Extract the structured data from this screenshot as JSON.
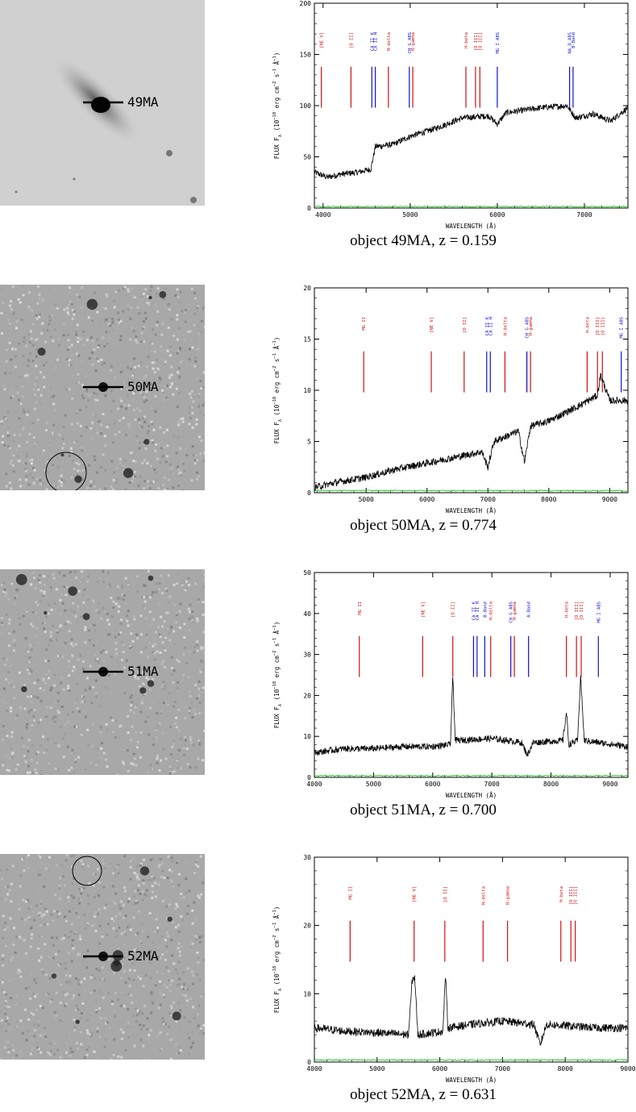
{
  "common": {
    "xlabel": "WAVELENGTH (Å)",
    "ylabel": "FLUX F",
    "ylabel_sub": "λ",
    "ylabel_units": "(10",
    "ylabel_exp": "−18",
    "ylabel_units2": " erg cm",
    "ylabel_exp2": "−2",
    "ylabel_units3": " s",
    "ylabel_exp3": "−1",
    "ylabel_units4": " Å",
    "ylabel_exp4": "−1",
    "ylabel_units5": ")",
    "colors": {
      "spectrum": "#000000",
      "error": "#00c000",
      "red_line": "#d01010",
      "blue_line": "#1010d0"
    }
  },
  "panels": [
    {
      "object_label": "49MA",
      "caption": "object 49MA, z = 0.159",
      "image_style": "smooth",
      "circle": false,
      "chart_data": {
        "type": "line",
        "xlim": [
          3900,
          7500
        ],
        "ylim": [
          0,
          200
        ],
        "xticks": [
          4000,
          5000,
          6000,
          7000
        ],
        "yticks": [
          0,
          50,
          100,
          150,
          200
        ],
        "spectrum_anchors": [
          [
            3900,
            35
          ],
          [
            4050,
            30
          ],
          [
            4200,
            33
          ],
          [
            4400,
            35
          ],
          [
            4550,
            38
          ],
          [
            4600,
            60
          ],
          [
            4800,
            62
          ],
          [
            5000,
            70
          ],
          [
            5300,
            78
          ],
          [
            5600,
            88
          ],
          [
            5900,
            90
          ],
          [
            6000,
            82
          ],
          [
            6100,
            93
          ],
          [
            6500,
            98
          ],
          [
            6800,
            100
          ],
          [
            6900,
            88
          ],
          [
            7100,
            92
          ],
          [
            7300,
            85
          ],
          [
            7500,
            98
          ]
        ],
        "noise": 3,
        "error_level": 1.5,
        "lines": [
          {
            "label": "[NE V]",
            "x": 3980,
            "color": "red"
          },
          {
            "label": "[O II]",
            "x": 4320,
            "color": "red"
          },
          {
            "label": "CA II K",
            "x": 4560,
            "color": "blue"
          },
          {
            "label": "CA II H",
            "x": 4600,
            "color": "blue"
          },
          {
            "label": "H-delta",
            "x": 4750,
            "color": "red"
          },
          {
            "label": "CH G ABS",
            "x": 4990,
            "color": "blue"
          },
          {
            "label": "H-gamma",
            "x": 5030,
            "color": "red"
          },
          {
            "label": "H-beta",
            "x": 5640,
            "color": "red"
          },
          {
            "label": "[O III]",
            "x": 5750,
            "color": "red"
          },
          {
            "label": "[O III]",
            "x": 5800,
            "color": "red"
          },
          {
            "label": "MG I ABS",
            "x": 6000,
            "color": "blue"
          },
          {
            "label": "NA D ABS",
            "x": 6830,
            "color": "blue"
          },
          {
            "label": "B-Band",
            "x": 6870,
            "color": "blue"
          }
        ]
      }
    },
    {
      "object_label": "50MA",
      "caption": "object 50MA, z = 0.774",
      "image_style": "noisy",
      "circle": true,
      "chart_data": {
        "type": "line",
        "xlim": [
          4150,
          9300
        ],
        "ylim": [
          0,
          20
        ],
        "xticks": [
          5000,
          6000,
          7000,
          8000,
          9000
        ],
        "yticks": [
          0,
          5,
          10,
          15,
          20
        ],
        "spectrum_anchors": [
          [
            4150,
            0.5
          ],
          [
            4500,
            1.0
          ],
          [
            5000,
            1.5
          ],
          [
            5500,
            2.3
          ],
          [
            6000,
            2.9
          ],
          [
            6500,
            3.5
          ],
          [
            6900,
            4.0
          ],
          [
            7000,
            2.5
          ],
          [
            7100,
            5.0
          ],
          [
            7500,
            6.0
          ],
          [
            7600,
            3.0
          ],
          [
            7700,
            6.5
          ],
          [
            8000,
            7.0
          ],
          [
            8500,
            8.5
          ],
          [
            8800,
            9.5
          ],
          [
            8850,
            11.5
          ],
          [
            9000,
            9.0
          ],
          [
            9300,
            9.0
          ]
        ],
        "noise": 0.35,
        "error_level": 0.2,
        "lines": [
          {
            "label": "MG II",
            "x": 4960,
            "color": "red"
          },
          {
            "label": "[NE V]",
            "x": 6070,
            "color": "red"
          },
          {
            "label": "[O II]",
            "x": 6610,
            "color": "red"
          },
          {
            "label": "CA II K",
            "x": 6980,
            "color": "blue"
          },
          {
            "label": "CA II H",
            "x": 7040,
            "color": "blue"
          },
          {
            "label": "H-delta",
            "x": 7280,
            "color": "red"
          },
          {
            "label": "CH G ABS",
            "x": 7640,
            "color": "blue"
          },
          {
            "label": "H-gamma",
            "x": 7700,
            "color": "red"
          },
          {
            "label": "H-beta",
            "x": 8630,
            "color": "red"
          },
          {
            "label": "[O III]",
            "x": 8800,
            "color": "red"
          },
          {
            "label": "[O III]",
            "x": 8880,
            "color": "red"
          },
          {
            "label": "MG I ABS",
            "x": 9190,
            "color": "blue"
          }
        ]
      }
    },
    {
      "object_label": "51MA",
      "caption": "object 51MA, z = 0.700",
      "image_style": "noisy",
      "circle": false,
      "chart_data": {
        "type": "line",
        "xlim": [
          4000,
          9300
        ],
        "ylim": [
          0,
          50
        ],
        "xticks": [
          4000,
          5000,
          6000,
          7000,
          8000,
          9000
        ],
        "yticks": [
          0,
          10,
          20,
          30,
          40,
          50
        ],
        "spectrum_anchors": [
          [
            4000,
            6.0
          ],
          [
            4500,
            7.0
          ],
          [
            5000,
            7.0
          ],
          [
            5500,
            7.5
          ],
          [
            6000,
            7.5
          ],
          [
            6300,
            8.0
          ],
          [
            6340,
            25.0
          ],
          [
            6380,
            9.0
          ],
          [
            7000,
            9.5
          ],
          [
            7500,
            8.5
          ],
          [
            7600,
            5.5
          ],
          [
            7700,
            8.5
          ],
          [
            8200,
            9.0
          ],
          [
            8260,
            16.0
          ],
          [
            8300,
            8.0
          ],
          [
            8450,
            9.0
          ],
          [
            8500,
            25.0
          ],
          [
            8560,
            9.0
          ],
          [
            9300,
            7.5
          ]
        ],
        "noise": 0.8,
        "error_level": 0.4,
        "lines": [
          {
            "label": "MG II",
            "x": 4760,
            "color": "red"
          },
          {
            "label": "[NE V]",
            "x": 5830,
            "color": "red"
          },
          {
            "label": "[O II]",
            "x": 6340,
            "color": "red"
          },
          {
            "label": "CA II K",
            "x": 6690,
            "color": "blue"
          },
          {
            "label": "CA II H",
            "x": 6750,
            "color": "blue"
          },
          {
            "label": "B-Band",
            "x": 6880,
            "color": "blue"
          },
          {
            "label": "H-delta",
            "x": 6980,
            "color": "red"
          },
          {
            "label": "CH G ABS",
            "x": 7320,
            "color": "blue"
          },
          {
            "label": "H-gamma",
            "x": 7380,
            "color": "red"
          },
          {
            "label": "A-Band",
            "x": 7620,
            "color": "blue"
          },
          {
            "label": "H-beta",
            "x": 8260,
            "color": "red"
          },
          {
            "label": "[O III]",
            "x": 8430,
            "color": "red"
          },
          {
            "label": "[O III]",
            "x": 8510,
            "color": "red"
          },
          {
            "label": "MG I ABS",
            "x": 8800,
            "color": "blue"
          }
        ]
      }
    },
    {
      "object_label": "52MA",
      "caption": "object 52MA, z = 0.631",
      "image_style": "noisy",
      "circle": true,
      "chart_data": {
        "type": "line",
        "xlim": [
          4000,
          9000
        ],
        "ylim": [
          0,
          30
        ],
        "xticks": [
          4000,
          5000,
          6000,
          7000,
          8000,
          9000
        ],
        "yticks": [
          0,
          10,
          20,
          30
        ],
        "spectrum_anchors": [
          [
            4000,
            5.0
          ],
          [
            4500,
            4.5
          ],
          [
            5000,
            4.3
          ],
          [
            5500,
            4.0
          ],
          [
            5560,
            12.0
          ],
          [
            5600,
            12.5
          ],
          [
            5650,
            4.0
          ],
          [
            6050,
            4.5
          ],
          [
            6090,
            13.0
          ],
          [
            6130,
            5.0
          ],
          [
            6500,
            5.5
          ],
          [
            7000,
            6.0
          ],
          [
            7500,
            5.5
          ],
          [
            7600,
            2.5
          ],
          [
            7700,
            5.5
          ],
          [
            8500,
            5.0
          ],
          [
            9000,
            5.0
          ]
        ],
        "noise": 0.6,
        "error_level": 0.3,
        "lines": [
          {
            "label": "MG II",
            "x": 4570,
            "color": "red"
          },
          {
            "label": "[NE V]",
            "x": 5590,
            "color": "red"
          },
          {
            "label": "[O II]",
            "x": 6080,
            "color": "red"
          },
          {
            "label": "H-delta",
            "x": 6690,
            "color": "red"
          },
          {
            "label": "H-gamma",
            "x": 7080,
            "color": "red"
          },
          {
            "label": "H-beta",
            "x": 7930,
            "color": "red"
          },
          {
            "label": "[O III]",
            "x": 8090,
            "color": "red"
          },
          {
            "label": "[O III]",
            "x": 8160,
            "color": "red"
          }
        ]
      }
    }
  ]
}
